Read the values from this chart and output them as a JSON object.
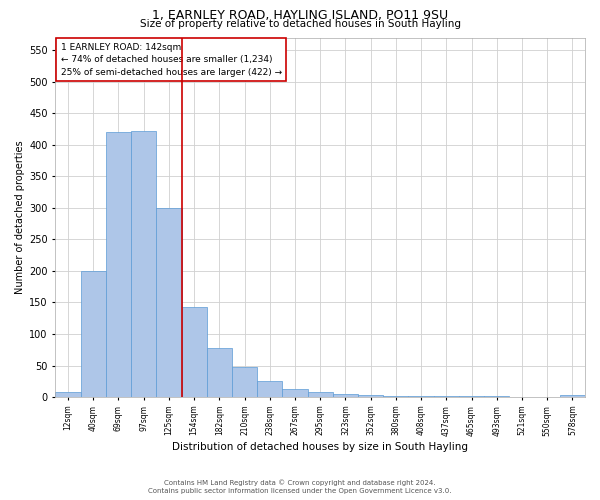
{
  "title": "1, EARNLEY ROAD, HAYLING ISLAND, PO11 9SU",
  "subtitle": "Size of property relative to detached houses in South Hayling",
  "xlabel": "Distribution of detached houses by size in South Hayling",
  "ylabel": "Number of detached properties",
  "footer_line1": "Contains HM Land Registry data © Crown copyright and database right 2024.",
  "footer_line2": "Contains public sector information licensed under the Open Government Licence v3.0.",
  "annotation_line1": "1 EARNLEY ROAD: 142sqm",
  "annotation_line2": "← 74% of detached houses are smaller (1,234)",
  "annotation_line3": "25% of semi-detached houses are larger (422) →",
  "bar_labels": [
    "12sqm",
    "40sqm",
    "69sqm",
    "97sqm",
    "125sqm",
    "154sqm",
    "182sqm",
    "210sqm",
    "238sqm",
    "267sqm",
    "295sqm",
    "323sqm",
    "352sqm",
    "380sqm",
    "408sqm",
    "437sqm",
    "465sqm",
    "493sqm",
    "521sqm",
    "550sqm",
    "578sqm"
  ],
  "bar_values": [
    8,
    200,
    420,
    422,
    300,
    143,
    77,
    48,
    25,
    12,
    8,
    5,
    3,
    2,
    1,
    1,
    1,
    1,
    0,
    0,
    3
  ],
  "bar_color": "#aec6e8",
  "bar_edge_color": "#5b9bd5",
  "bar_width": 1.0,
  "ylim": [
    0,
    570
  ],
  "yticks": [
    0,
    50,
    100,
    150,
    200,
    250,
    300,
    350,
    400,
    450,
    500,
    550
  ],
  "red_line_x": 4.5,
  "red_line_color": "#cc0000",
  "annotation_box_color": "#cc0000",
  "annotation_text_color": "#000000",
  "grid_color": "#d0d0d0",
  "background_color": "#ffffff"
}
